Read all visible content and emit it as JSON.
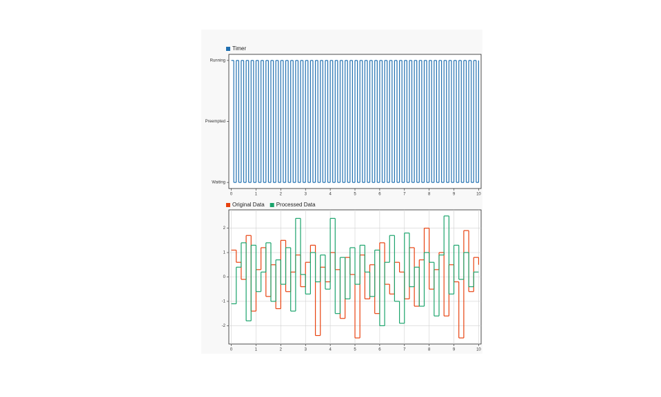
{
  "chart_data": [
    {
      "type": "step",
      "legend": "top-left",
      "grid": false,
      "xlim": [
        -0.1,
        10.1
      ],
      "xticks": [
        0,
        1,
        2,
        3,
        4,
        5,
        6,
        7,
        8,
        9,
        10
      ],
      "ylim": [
        -0.1,
        2.1
      ],
      "yticks": [
        {
          "value": 0,
          "label": "Waiting"
        },
        {
          "value": 1,
          "label": "Preempted"
        },
        {
          "value": 2,
          "label": "Running"
        }
      ],
      "x": [
        0,
        0.1,
        0.2,
        0.3,
        0.4,
        0.5,
        0.6,
        0.7,
        0.8,
        0.9,
        1,
        1.1,
        1.2,
        1.3,
        1.4,
        1.5,
        1.6,
        1.7,
        1.8,
        1.9,
        2,
        2.1,
        2.2,
        2.3,
        2.4,
        2.5,
        2.6,
        2.7,
        2.8,
        2.9,
        3,
        3.1,
        3.2,
        3.3,
        3.4,
        3.5,
        3.6,
        3.7,
        3.8,
        3.9,
        4,
        4.1,
        4.2,
        4.3,
        4.4,
        4.5,
        4.6,
        4.7,
        4.8,
        4.9,
        5,
        5.1,
        5.2,
        5.3,
        5.4,
        5.5,
        5.6,
        5.7,
        5.8,
        5.9,
        6,
        6.1,
        6.2,
        6.3,
        6.4,
        6.5,
        6.6,
        6.7,
        6.8,
        6.9,
        7,
        7.1,
        7.2,
        7.3,
        7.4,
        7.5,
        7.6,
        7.7,
        7.8,
        7.9,
        8,
        8.1,
        8.2,
        8.3,
        8.4,
        8.5,
        8.6,
        8.7,
        8.8,
        8.9,
        9,
        9.1,
        9.2,
        9.3,
        9.4,
        9.5,
        9.6,
        9.7,
        9.8,
        9.9,
        10
      ],
      "series": [
        {
          "name": "Timer",
          "color": "#1f6fb0",
          "values": [
            2,
            0,
            2,
            0,
            2,
            0,
            2,
            0,
            2,
            0,
            2,
            0,
            2,
            0,
            2,
            0,
            2,
            0,
            2,
            0,
            2,
            0,
            2,
            0,
            2,
            0,
            2,
            0,
            2,
            0,
            2,
            0,
            2,
            0,
            2,
            0,
            2,
            0,
            2,
            0,
            2,
            0,
            2,
            0,
            2,
            0,
            2,
            0,
            2,
            0,
            2,
            0,
            2,
            0,
            2,
            0,
            2,
            0,
            2,
            0,
            2,
            0,
            2,
            0,
            2,
            0,
            2,
            0,
            2,
            0,
            2,
            0,
            2,
            0,
            2,
            0,
            2,
            0,
            2,
            0,
            2,
            0,
            2,
            0,
            2,
            0,
            2,
            0,
            2,
            0,
            2,
            0,
            2,
            0,
            2,
            0,
            2,
            0,
            2,
            0,
            2
          ]
        }
      ]
    },
    {
      "type": "step",
      "legend": "top-left",
      "grid": true,
      "xlim": [
        -0.1,
        10.1
      ],
      "xticks": [
        0,
        1,
        2,
        3,
        4,
        5,
        6,
        7,
        8,
        9,
        10
      ],
      "ylim": [
        -2.75,
        2.75
      ],
      "yticks": [
        -2,
        -1,
        0,
        1,
        2
      ],
      "x": [
        0,
        0.2,
        0.4,
        0.6,
        0.8,
        1,
        1.2,
        1.4,
        1.6,
        1.8,
        2,
        2.2,
        2.4,
        2.6,
        2.8,
        3,
        3.2,
        3.4,
        3.6,
        3.8,
        4,
        4.2,
        4.4,
        4.6,
        4.8,
        5,
        5.2,
        5.4,
        5.6,
        5.8,
        6,
        6.2,
        6.4,
        6.6,
        6.8,
        7,
        7.2,
        7.4,
        7.6,
        7.8,
        8,
        8.2,
        8.4,
        8.6,
        8.8,
        9,
        9.2,
        9.4,
        9.6,
        9.8,
        10
      ],
      "series": [
        {
          "name": "Original Data",
          "color": "#e8410e",
          "values": [
            1.1,
            0.6,
            -0.1,
            1.7,
            -1.4,
            0.3,
            1.2,
            -0.8,
            0.5,
            -1.3,
            1.5,
            -0.6,
            0.2,
            0.9,
            -0.4,
            0.6,
            1.3,
            -2.4,
            0.4,
            -0.2,
            1.0,
            0.3,
            -1.7,
            0.8,
            0.1,
            -2.5,
            0.9,
            -0.9,
            0.5,
            -1.5,
            1.4,
            -0.3,
            -0.7,
            0.6,
            0.2,
            -0.9,
            1.2,
            -1.2,
            0.7,
            2.0,
            -0.5,
            0.3,
            1.0,
            -1.6,
            0.5,
            -0.2,
            -2.5,
            1.9,
            -0.6,
            0.8,
            0.5
          ]
        },
        {
          "name": "Processed Data",
          "color": "#1aa36b",
          "values": [
            -1.1,
            0.4,
            1.4,
            -1.8,
            1.3,
            -0.6,
            0.2,
            1.4,
            -1.0,
            0.7,
            -0.3,
            1.2,
            -1.4,
            2.4,
            0.1,
            -0.7,
            1.0,
            -0.2,
            0.9,
            -0.5,
            2.4,
            -1.5,
            0.8,
            -0.9,
            1.2,
            -0.3,
            1.3,
            0.2,
            -0.8,
            1.1,
            -2.0,
            0.6,
            1.7,
            -1.0,
            -1.9,
            1.8,
            -0.4,
            0.4,
            -1.2,
            1.0,
            0.6,
            -1.6,
            0.9,
            2.5,
            -0.7,
            1.3,
            -0.1,
            1.0,
            -0.4,
            0.2,
            0.2
          ]
        }
      ]
    }
  ]
}
